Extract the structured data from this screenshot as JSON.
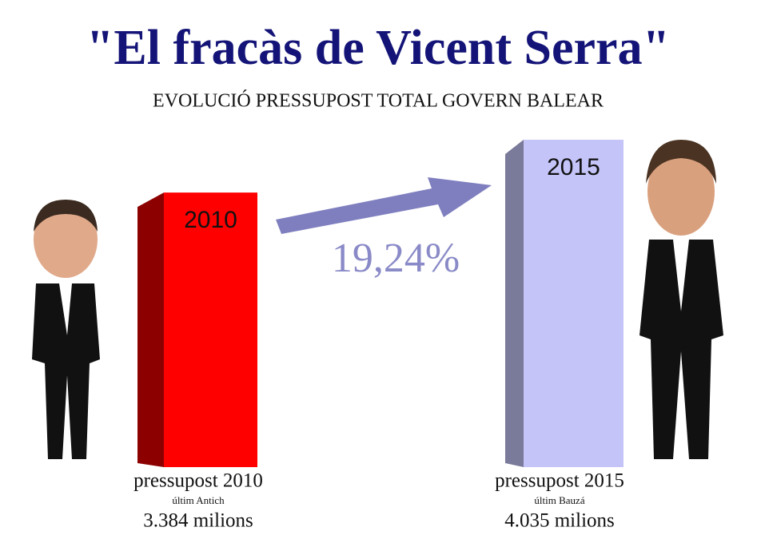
{
  "chart_data": {
    "type": "bar",
    "title": "\"El fracàs de Vicent Serra\"",
    "subtitle": "EVOLUCIÓ PRESSUPOST TOTAL GOVERN BALEAR",
    "categories": [
      "2010",
      "2015"
    ],
    "values": [
      3384,
      4035
    ],
    "value_labels": [
      "3.384 milions",
      "4.035 milions"
    ],
    "captions": [
      "pressupost 2010",
      "pressupost 2015"
    ],
    "subcaptions": [
      "últim Antich",
      "últim Bauzá"
    ],
    "colors": [
      "#ff0000",
      "#c4c4f8"
    ],
    "annotation": "19,24%"
  }
}
